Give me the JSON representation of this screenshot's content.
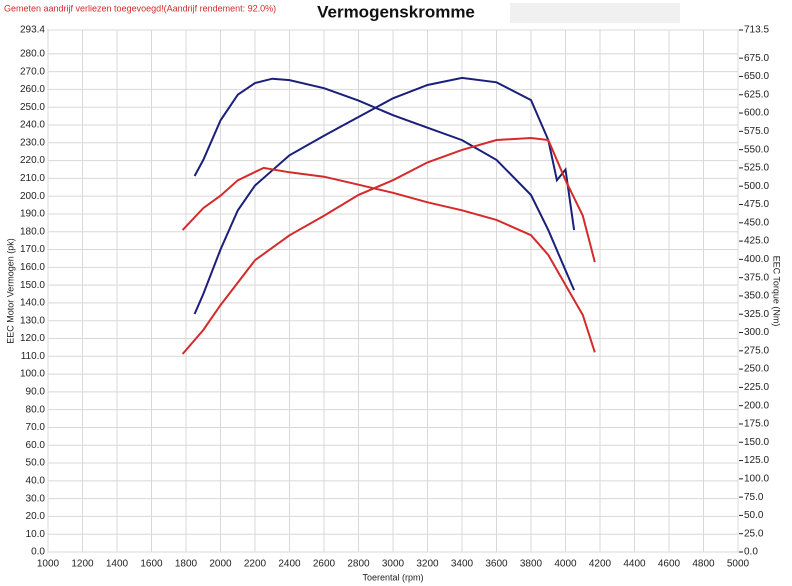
{
  "chart_data": {
    "type": "line",
    "title": "Vermogenskromme",
    "subtitle": "Gemeten aandrijf verliezen toegevoegd!(Aandrijf rendement: 92.0%)",
    "x_label": "Toerental (rpm)",
    "y_label": "EEC Motor Vermogen (pk)",
    "y2_label": "EEC Torque (Nm)",
    "xlim": [
      1000,
      5000
    ],
    "xticks": [
      1000,
      1200,
      1400,
      1600,
      1800,
      2000,
      2200,
      2400,
      2600,
      2800,
      3000,
      3200,
      3400,
      3600,
      3800,
      4000,
      4200,
      4400,
      4600,
      4800,
      5000
    ],
    "ylim": [
      0,
      293.4
    ],
    "yticks": [
      {
        "value": 0,
        "label": "0.0"
      },
      {
        "value": 10,
        "label": "10.0"
      },
      {
        "value": 20,
        "label": "20.0"
      },
      {
        "value": 30,
        "label": "30.0"
      },
      {
        "value": 40,
        "label": "40.0"
      },
      {
        "value": 50,
        "label": "50.0"
      },
      {
        "value": 60,
        "label": "60.0"
      },
      {
        "value": 70,
        "label": "70.0"
      },
      {
        "value": 80,
        "label": "80.0"
      },
      {
        "value": 90,
        "label": "90.0"
      },
      {
        "value": 100,
        "label": "100.0"
      },
      {
        "value": 110,
        "label": "110.0"
      },
      {
        "value": 120,
        "label": "120.0"
      },
      {
        "value": 130,
        "label": "130.0"
      },
      {
        "value": 140,
        "label": "140.0"
      },
      {
        "value": 150,
        "label": "150.0"
      },
      {
        "value": 160,
        "label": "160.0"
      },
      {
        "value": 170,
        "label": "170.0"
      },
      {
        "value": 180,
        "label": "180.0"
      },
      {
        "value": 190,
        "label": "190.0"
      },
      {
        "value": 200,
        "label": "200.0"
      },
      {
        "value": 210,
        "label": "210.0"
      },
      {
        "value": 220,
        "label": "220.0"
      },
      {
        "value": 230,
        "label": "230.0"
      },
      {
        "value": 240,
        "label": "240.0"
      },
      {
        "value": 250,
        "label": "250.0"
      },
      {
        "value": 260,
        "label": "260.0"
      },
      {
        "value": 270,
        "label": "270.0"
      },
      {
        "value": 280,
        "label": "280.0"
      },
      293.4
    ],
    "y2lim": [
      0,
      713.5
    ],
    "y2ticks": [
      {
        "value": 0,
        "label": "0.0"
      },
      {
        "value": 25,
        "label": "25.0"
      },
      {
        "value": 50,
        "label": "50.0"
      },
      {
        "value": 75,
        "label": "75.0"
      },
      {
        "value": 100,
        "label": "100.0"
      },
      {
        "value": 125,
        "label": "125.0"
      },
      {
        "value": 150,
        "label": "150.0"
      },
      {
        "value": 175,
        "label": "175.0"
      },
      {
        "value": 200,
        "label": "200.0"
      },
      {
        "value": 225,
        "label": "225.0"
      },
      {
        "value": 250,
        "label": "250.0"
      },
      {
        "value": 275,
        "label": "275.0"
      },
      {
        "value": 300,
        "label": "300.0"
      },
      {
        "value": 325,
        "label": "325.0"
      },
      {
        "value": 350,
        "label": "350.0"
      },
      {
        "value": 375,
        "label": "375.0"
      },
      {
        "value": 400,
        "label": "400.0"
      },
      {
        "value": 425,
        "label": "425.0"
      },
      {
        "value": 450,
        "label": "450.0"
      },
      {
        "value": 475,
        "label": "475.0"
      },
      {
        "value": 500,
        "label": "500.0"
      },
      {
        "value": 525,
        "label": "525.0"
      },
      {
        "value": 550,
        "label": "550.0"
      },
      {
        "value": 575,
        "label": "575.0"
      },
      {
        "value": 600,
        "label": "600.0"
      },
      {
        "value": 625,
        "label": "625.0"
      },
      {
        "value": 650,
        "label": "650.0"
      },
      {
        "value": 675,
        "label": "675.0"
      },
      713.5
    ],
    "grid": true,
    "series": [
      {
        "color": "#1a1f7a",
        "x": [
          1850,
          1900,
          2000,
          2100,
          2200,
          2400,
          2600,
          2800,
          3000,
          3200,
          3400,
          3600,
          3800,
          3900,
          3950,
          4000,
          4050
        ],
        "values": [
          133.8,
          145,
          170,
          192,
          206,
          223,
          234,
          244.5,
          255,
          262.5,
          266.5,
          264,
          254,
          231.6,
          209,
          215,
          181
        ]
      },
      {
        "color": "#1a1f7a",
        "axis": "y2",
        "x": [
          1850,
          1900,
          2000,
          2100,
          2200,
          2300,
          2400,
          2600,
          2800,
          3000,
          3200,
          3400,
          3600,
          3800,
          3900,
          4000,
          4050
        ],
        "values": [
          514,
          536,
          590,
          625,
          641,
          647,
          645,
          634,
          617,
          597,
          580,
          563,
          536,
          488,
          440,
          385,
          358
        ]
      },
      {
        "color": "#d42a2a",
        "x": [
          1780,
          1900,
          2000,
          2200,
          2400,
          2600,
          2800,
          3000,
          3200,
          3400,
          3600,
          3800,
          3900,
          4000,
          4100,
          4170
        ],
        "values": [
          111.3,
          124.8,
          138.8,
          164,
          178,
          189,
          200.7,
          209,
          219,
          226,
          231.6,
          232.7,
          231.6,
          209,
          189,
          163
        ]
      },
      {
        "color": "#d42a2a",
        "axis": "y2",
        "x": [
          1780,
          1900,
          2000,
          2100,
          2250,
          2400,
          2600,
          2800,
          3000,
          3200,
          3400,
          3600,
          3800,
          3900,
          4000,
          4100,
          4170
        ],
        "values": [
          440,
          470,
          487,
          508,
          525,
          519,
          513,
          502,
          491,
          478,
          467,
          454,
          433,
          406,
          365,
          324,
          273
        ]
      }
    ]
  }
}
